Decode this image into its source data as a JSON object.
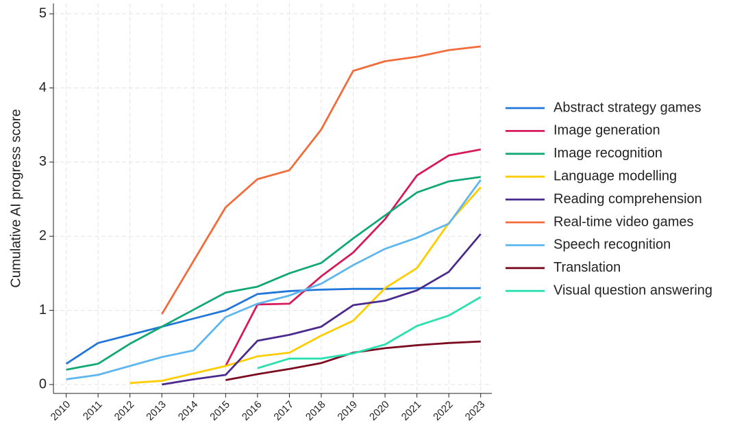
{
  "chart_data": {
    "type": "line",
    "y_label": "Cumulative AI progress score",
    "x": [
      2010,
      2011,
      2012,
      2013,
      2014,
      2015,
      2016,
      2017,
      2018,
      2019,
      2020,
      2021,
      2022,
      2023
    ],
    "xlim": [
      2009.6,
      2023.35
    ],
    "xticks": [
      2010,
      2011,
      2012,
      2013,
      2014,
      2015,
      2016,
      2017,
      2018,
      2019,
      2020,
      2021,
      2022,
      2023
    ],
    "ylim": [
      -0.12,
      5.14
    ],
    "yticks": [
      0,
      1,
      2,
      3,
      4,
      5
    ],
    "grid": true,
    "legend": "right",
    "series": [
      {
        "name": "Abstract strategy games",
        "color": "#2176d9",
        "values": [
          0.28,
          0.56,
          0.67,
          0.78,
          0.89,
          1.0,
          1.22,
          1.26,
          1.28,
          1.29,
          1.29,
          1.3,
          1.3,
          1.3
        ]
      },
      {
        "name": "Image generation",
        "color": "#d6195a",
        "values": [
          null,
          null,
          null,
          null,
          null,
          0.25,
          1.08,
          1.09,
          1.46,
          1.78,
          2.23,
          2.82,
          3.09,
          3.17
        ]
      },
      {
        "name": "Image recognition",
        "color": "#11a874",
        "values": [
          0.2,
          0.28,
          0.55,
          0.78,
          1.01,
          1.24,
          1.32,
          1.5,
          1.64,
          1.97,
          2.28,
          2.59,
          2.74,
          2.8
        ]
      },
      {
        "name": "Language modelling",
        "color": "#ffcc00",
        "values": [
          null,
          null,
          0.02,
          0.05,
          0.15,
          0.25,
          0.38,
          0.43,
          0.66,
          0.86,
          1.3,
          1.57,
          2.18,
          2.66
        ]
      },
      {
        "name": "Reading comprehension",
        "color": "#4b2a8e",
        "values": [
          null,
          null,
          null,
          0.0,
          0.07,
          0.13,
          0.59,
          0.67,
          0.78,
          1.07,
          1.13,
          1.27,
          1.52,
          2.03
        ]
      },
      {
        "name": "Real-time video games",
        "color": "#f26b3a",
        "values": [
          null,
          null,
          null,
          0.95,
          1.67,
          2.39,
          2.77,
          2.89,
          3.44,
          4.23,
          4.36,
          4.42,
          4.51,
          4.56
        ]
      },
      {
        "name": "Speech recognition",
        "color": "#5eb6f0",
        "values": [
          0.07,
          0.13,
          0.25,
          0.37,
          0.46,
          0.91,
          1.09,
          1.2,
          1.36,
          1.61,
          1.83,
          1.98,
          2.17,
          2.76
        ]
      },
      {
        "name": "Translation",
        "color": "#7a0a1f",
        "values": [
          null,
          null,
          null,
          null,
          null,
          0.06,
          0.14,
          0.21,
          0.29,
          0.43,
          0.49,
          0.53,
          0.56,
          0.58
        ]
      },
      {
        "name": "Visual question answering",
        "color": "#2ae0b0",
        "values": [
          null,
          null,
          null,
          null,
          null,
          null,
          0.22,
          0.35,
          0.35,
          0.42,
          0.54,
          0.79,
          0.93,
          1.18
        ]
      }
    ]
  }
}
